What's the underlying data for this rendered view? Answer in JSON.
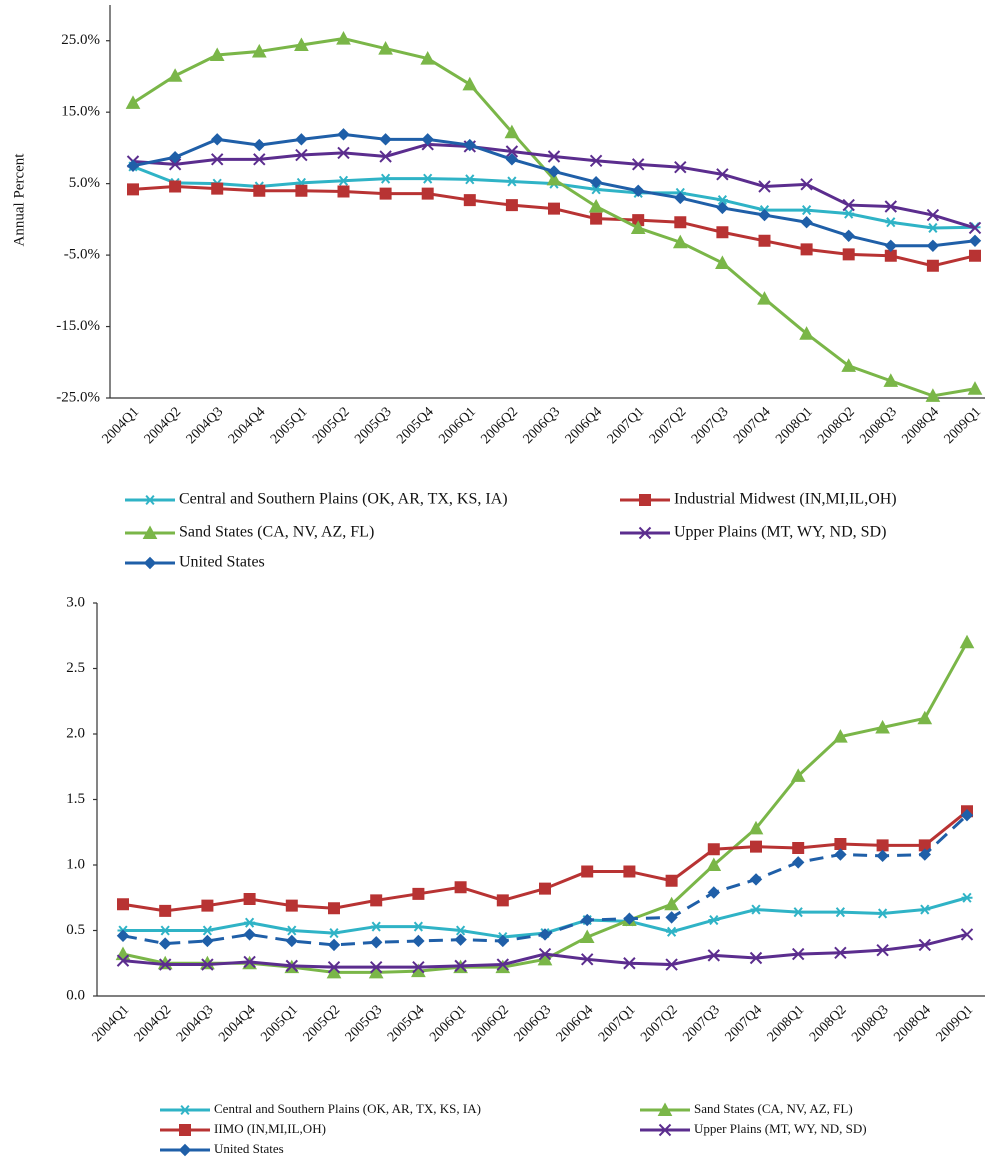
{
  "chart_data": [
    {
      "type": "line",
      "y_label": "Annual Percent",
      "categories": [
        "2004Q1",
        "2004Q2",
        "2004Q3",
        "2004Q4",
        "2005Q1",
        "2005Q2",
        "2005Q3",
        "2005Q4",
        "2006Q1",
        "2006Q2",
        "2006Q3",
        "2006Q4",
        "2007Q1",
        "2007Q2",
        "2007Q3",
        "2007Q4",
        "2008Q1",
        "2008Q2",
        "2008Q3",
        "2008Q4",
        "2009Q1"
      ],
      "ylim": [
        -25,
        30
      ],
      "yticks": [
        {
          "value": -25,
          "label": "-25.0%"
        },
        {
          "value": -15,
          "label": "-15.0%"
        },
        {
          "value": -5,
          "label": "-5.0%"
        },
        {
          "value": 5,
          "label": "5.0%"
        },
        {
          "value": 15,
          "label": "15.0%"
        },
        {
          "value": 25,
          "label": "25.0%"
        }
      ],
      "grid": false,
      "series": [
        {
          "name": "Central and Southern Plains (OK, AR, TX, KS, IA)",
          "color": "#2fb3c6",
          "marker": "star",
          "values": [
            7.4,
            5.1,
            5.0,
            4.6,
            5.1,
            5.4,
            5.7,
            5.7,
            5.6,
            5.3,
            5.0,
            4.2,
            3.7,
            3.7,
            2.7,
            1.3,
            1.3,
            0.8,
            -0.4,
            -1.2,
            -1.1
          ]
        },
        {
          "name": "Industrial Midwest (IN,MI,IL,OH)",
          "color": "#b83333",
          "marker": "square",
          "values": [
            4.2,
            4.6,
            4.3,
            4.0,
            4.0,
            3.9,
            3.6,
            3.6,
            2.7,
            2.0,
            1.5,
            0.1,
            -0.1,
            -0.4,
            -1.8,
            -3.0,
            -4.2,
            -4.9,
            -5.1,
            -6.5,
            -5.1
          ]
        },
        {
          "name": "Sand States (CA, NV, AZ, FL)",
          "color": "#7ab648",
          "marker": "triangle",
          "values": [
            16.3,
            20.1,
            23.0,
            23.5,
            24.4,
            25.3,
            23.9,
            22.5,
            18.9,
            12.2,
            5.6,
            1.8,
            -1.2,
            -3.2,
            -6.1,
            -11.1,
            -16.0,
            -20.5,
            -22.6,
            -24.7,
            -23.7
          ]
        },
        {
          "name": "Upper Plains (MT, WY, ND, SD)",
          "color": "#5b2d8e",
          "marker": "x",
          "values": [
            8.1,
            7.7,
            8.4,
            8.4,
            9.0,
            9.3,
            8.8,
            10.5,
            10.2,
            9.5,
            8.8,
            8.2,
            7.7,
            7.3,
            6.3,
            4.6,
            4.9,
            2.0,
            1.8,
            0.6,
            -1.2
          ]
        },
        {
          "name": "United States",
          "color": "#1f5fa8",
          "marker": "diamond",
          "values": [
            7.5,
            8.7,
            11.2,
            10.4,
            11.2,
            11.9,
            11.2,
            11.2,
            10.4,
            8.4,
            6.7,
            5.2,
            4.0,
            3.0,
            1.6,
            0.6,
            -0.4,
            -2.3,
            -3.7,
            -3.7,
            -3.0
          ]
        }
      ]
    },
    {
      "type": "line",
      "categories": [
        "2004Q1",
        "2004Q2",
        "2004Q3",
        "2004Q4",
        "2005Q1",
        "2005Q2",
        "2005Q3",
        "2005Q4",
        "2006Q1",
        "2006Q2",
        "2006Q3",
        "2006Q4",
        "2007Q1",
        "2007Q2",
        "2007Q3",
        "2007Q4",
        "2008Q1",
        "2008Q2",
        "2008Q3",
        "2008Q4",
        "2009Q1"
      ],
      "ylim": [
        0,
        3
      ],
      "yticks": [
        {
          "value": 0,
          "label": "0.0"
        },
        0.5,
        {
          "value": 1,
          "label": "1.0"
        },
        1.5,
        {
          "value": 2,
          "label": "2.0"
        },
        2.5,
        {
          "value": 3,
          "label": "3.0"
        }
      ],
      "grid": false,
      "series": [
        {
          "name": "Central and Southern Plains (OK, AR, TX, KS, IA)",
          "color": "#2fb3c6",
          "marker": "star",
          "values": [
            0.5,
            0.5,
            0.5,
            0.56,
            0.5,
            0.48,
            0.53,
            0.53,
            0.5,
            0.45,
            0.48,
            0.58,
            0.57,
            0.49,
            0.58,
            0.66,
            0.64,
            0.64,
            0.63,
            0.66,
            0.75
          ]
        },
        {
          "name": "Sand States (CA, NV, AZ, FL)",
          "color": "#7ab648",
          "marker": "triangle",
          "values": [
            0.32,
            0.25,
            0.25,
            0.25,
            0.22,
            0.18,
            0.18,
            0.19,
            0.22,
            0.22,
            0.28,
            0.45,
            0.58,
            0.7,
            1.0,
            1.28,
            1.68,
            1.98,
            2.05,
            2.12,
            2.7
          ]
        },
        {
          "name": "IIMO (IN,MI,IL,OH)",
          "color": "#b83333",
          "marker": "square",
          "values": [
            0.7,
            0.65,
            0.69,
            0.74,
            0.69,
            0.67,
            0.73,
            0.78,
            0.83,
            0.73,
            0.82,
            0.95,
            0.95,
            0.88,
            1.12,
            1.14,
            1.13,
            1.16,
            1.15,
            1.15,
            1.41
          ]
        },
        {
          "name": "Upper Plains (MT, WY, ND, SD)",
          "color": "#5b2d8e",
          "marker": "x",
          "values": [
            0.27,
            0.24,
            0.24,
            0.26,
            0.23,
            0.22,
            0.22,
            0.22,
            0.23,
            0.24,
            0.32,
            0.28,
            0.25,
            0.24,
            0.31,
            0.29,
            0.32,
            0.33,
            0.35,
            0.39,
            0.47
          ]
        },
        {
          "name": "United States",
          "color": "#1f5fa8",
          "marker": "diamond",
          "dashed": true,
          "values": [
            0.46,
            0.4,
            0.42,
            0.47,
            0.42,
            0.39,
            0.41,
            0.42,
            0.43,
            0.42,
            0.47,
            0.58,
            0.59,
            0.6,
            0.79,
            0.89,
            1.02,
            1.08,
            1.07,
            1.08,
            1.38
          ]
        }
      ]
    }
  ]
}
